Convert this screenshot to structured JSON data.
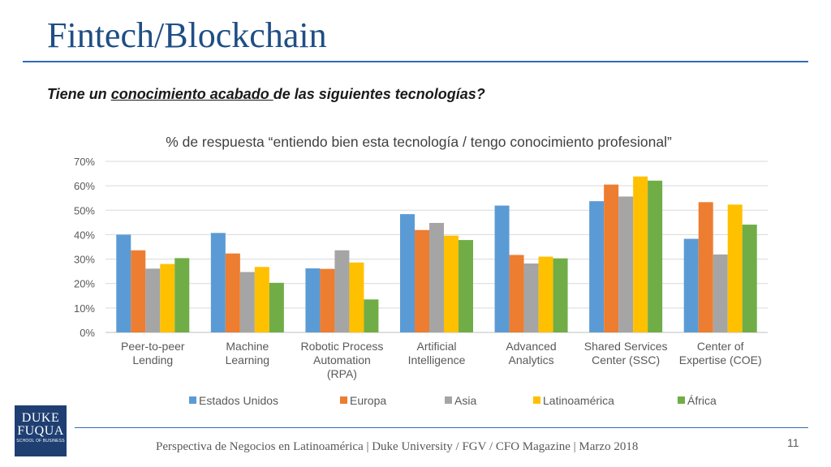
{
  "slide": {
    "title": "Fintech/Blockchain",
    "question_before": "Tiene un ",
    "question_underlined": "conocimiento acabado ",
    "question_after": "de las siguientes tecnologías?",
    "footer": "Perspectiva de Negocios en Latinoamérica | Duke University / FGV / CFO Magazine | Marzo 2018",
    "page_number": "11",
    "logo": {
      "line1": "DUKE",
      "line2": "FUQUA",
      "line3": "SCHOOL OF BUSINESS"
    }
  },
  "chart_data": {
    "type": "bar",
    "title": "% de respuesta “entiendo bien esta tecnología / tengo conocimiento profesional”",
    "categories": [
      [
        "Peer-to-peer",
        "Lending"
      ],
      [
        "Machine",
        "Learning"
      ],
      [
        "Robotic Process",
        "Automation",
        "(RPA)"
      ],
      [
        "Artificial",
        "Intelligence"
      ],
      [
        "Advanced",
        "Analytics"
      ],
      [
        "Shared Services",
        "Center (SSC)"
      ],
      [
        "Center of",
        "Expertise (COE)"
      ]
    ],
    "series": [
      {
        "name": "Estados Unidos",
        "color": "#5b9bd5",
        "values": [
          40,
          40.7,
          26.2,
          48.4,
          51.9,
          53.7,
          38.3
        ]
      },
      {
        "name": "Europa",
        "color": "#ed7d31",
        "values": [
          33.6,
          32.3,
          26,
          41.9,
          31.7,
          60.5,
          53.3
        ]
      },
      {
        "name": "Asia",
        "color": "#a5a5a5",
        "values": [
          26.1,
          24.7,
          33.6,
          44.8,
          28.2,
          55.6,
          31.9
        ]
      },
      {
        "name": "Latinoamérica",
        "color": "#ffc000",
        "values": [
          28,
          26.8,
          28.6,
          39.6,
          31,
          63.8,
          52.3
        ]
      },
      {
        "name": "África",
        "color": "#70ad47",
        "values": [
          30.4,
          20.3,
          13.5,
          37.8,
          30.3,
          62.1,
          44.1
        ]
      }
    ],
    "ylim": [
      0,
      70
    ],
    "yticks": [
      0,
      10,
      20,
      30,
      40,
      50,
      60,
      70
    ],
    "ytick_labels": [
      "0%",
      "10%",
      "20%",
      "30%",
      "40%",
      "50%",
      "60%",
      "70%"
    ],
    "grid": true,
    "legend_position": "bottom"
  }
}
